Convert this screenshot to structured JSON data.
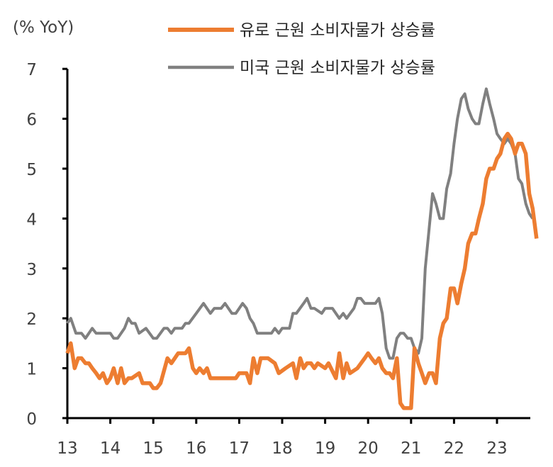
{
  "chart_data": {
    "type": "line",
    "unit_label": "(% YoY)",
    "xlabel": "",
    "ylabel": "",
    "xlim": [
      13,
      24
    ],
    "ylim": [
      0,
      7
    ],
    "x_ticks": [
      "13",
      "14",
      "15",
      "16",
      "17",
      "18",
      "19",
      "20",
      "21",
      "22",
      "23"
    ],
    "y_ticks": [
      "0",
      "1",
      "2",
      "3",
      "4",
      "5",
      "6",
      "7"
    ],
    "grid": false,
    "legend_position": "top-right",
    "series": [
      {
        "name": "유로 근원 소비자물가 상승률",
        "color": "#ED7D31",
        "points": [
          [
            13.0,
            1.3
          ],
          [
            13.08,
            1.5
          ],
          [
            13.17,
            1.0
          ],
          [
            13.25,
            1.2
          ],
          [
            13.33,
            1.2
          ],
          [
            13.42,
            1.1
          ],
          [
            13.5,
            1.1
          ],
          [
            13.58,
            1.0
          ],
          [
            13.67,
            0.9
          ],
          [
            13.75,
            0.8
          ],
          [
            13.83,
            0.9
          ],
          [
            13.92,
            0.7
          ],
          [
            14.0,
            0.8
          ],
          [
            14.08,
            1.0
          ],
          [
            14.17,
            0.7
          ],
          [
            14.25,
            1.0
          ],
          [
            14.33,
            0.7
          ],
          [
            14.42,
            0.8
          ],
          [
            14.5,
            0.8
          ],
          [
            14.67,
            0.9
          ],
          [
            14.75,
            0.7
          ],
          [
            14.92,
            0.7
          ],
          [
            15.0,
            0.6
          ],
          [
            15.08,
            0.6
          ],
          [
            15.17,
            0.7
          ],
          [
            15.33,
            1.2
          ],
          [
            15.42,
            1.1
          ],
          [
            15.58,
            1.3
          ],
          [
            15.75,
            1.3
          ],
          [
            15.83,
            1.4
          ],
          [
            15.92,
            1.0
          ],
          [
            16.0,
            0.9
          ],
          [
            16.08,
            1.0
          ],
          [
            16.17,
            0.9
          ],
          [
            16.25,
            1.0
          ],
          [
            16.33,
            0.8
          ],
          [
            16.42,
            0.8
          ],
          [
            16.58,
            0.8
          ],
          [
            16.75,
            0.8
          ],
          [
            16.92,
            0.8
          ],
          [
            17.0,
            0.9
          ],
          [
            17.17,
            0.9
          ],
          [
            17.25,
            0.7
          ],
          [
            17.33,
            1.2
          ],
          [
            17.42,
            0.9
          ],
          [
            17.5,
            1.2
          ],
          [
            17.67,
            1.2
          ],
          [
            17.83,
            1.1
          ],
          [
            17.92,
            0.9
          ],
          [
            18.08,
            1.0
          ],
          [
            18.25,
            1.1
          ],
          [
            18.33,
            0.8
          ],
          [
            18.42,
            1.2
          ],
          [
            18.5,
            1.0
          ],
          [
            18.58,
            1.1
          ],
          [
            18.67,
            1.1
          ],
          [
            18.75,
            1.0
          ],
          [
            18.83,
            1.1
          ],
          [
            19.0,
            1.0
          ],
          [
            19.08,
            1.1
          ],
          [
            19.25,
            0.8
          ],
          [
            19.33,
            1.3
          ],
          [
            19.42,
            0.8
          ],
          [
            19.5,
            1.1
          ],
          [
            19.58,
            0.9
          ],
          [
            19.75,
            1.0
          ],
          [
            19.92,
            1.2
          ],
          [
            20.0,
            1.3
          ],
          [
            20.08,
            1.2
          ],
          [
            20.17,
            1.1
          ],
          [
            20.25,
            1.2
          ],
          [
            20.33,
            1.0
          ],
          [
            20.42,
            0.9
          ],
          [
            20.5,
            0.9
          ],
          [
            20.58,
            0.8
          ],
          [
            20.67,
            1.2
          ],
          [
            20.75,
            0.3
          ],
          [
            20.83,
            0.2
          ],
          [
            20.92,
            0.2
          ],
          [
            21.0,
            0.2
          ],
          [
            21.08,
            1.4
          ],
          [
            21.17,
            1.1
          ],
          [
            21.25,
            0.9
          ],
          [
            21.33,
            0.7
          ],
          [
            21.42,
            0.9
          ],
          [
            21.5,
            0.9
          ],
          [
            21.58,
            0.7
          ],
          [
            21.67,
            1.6
          ],
          [
            21.75,
            1.9
          ],
          [
            21.83,
            2.0
          ],
          [
            21.92,
            2.6
          ],
          [
            22.0,
            2.6
          ],
          [
            22.08,
            2.3
          ],
          [
            22.17,
            2.7
          ],
          [
            22.25,
            3.0
          ],
          [
            22.33,
            3.5
          ],
          [
            22.42,
            3.7
          ],
          [
            22.5,
            3.7
          ],
          [
            22.58,
            4.0
          ],
          [
            22.67,
            4.3
          ],
          [
            22.75,
            4.8
          ],
          [
            22.83,
            5.0
          ],
          [
            22.92,
            5.0
          ],
          [
            23.0,
            5.2
          ],
          [
            23.08,
            5.3
          ],
          [
            23.17,
            5.6
          ],
          [
            23.25,
            5.7
          ],
          [
            23.33,
            5.6
          ],
          [
            23.42,
            5.3
          ],
          [
            23.5,
            5.5
          ],
          [
            23.58,
            5.5
          ],
          [
            23.67,
            5.3
          ],
          [
            23.75,
            4.5
          ],
          [
            23.83,
            4.2
          ],
          [
            23.92,
            3.6
          ]
        ]
      },
      {
        "name": "미국 근원 소비자물가 상승률",
        "color": "#808080",
        "points": [
          [
            13.0,
            1.9
          ],
          [
            13.08,
            2.0
          ],
          [
            13.2,
            1.7
          ],
          [
            13.33,
            1.7
          ],
          [
            13.42,
            1.6
          ],
          [
            13.58,
            1.8
          ],
          [
            13.67,
            1.7
          ],
          [
            14.0,
            1.7
          ],
          [
            14.08,
            1.6
          ],
          [
            14.17,
            1.6
          ],
          [
            14.33,
            1.8
          ],
          [
            14.42,
            2.0
          ],
          [
            14.5,
            1.9
          ],
          [
            14.58,
            1.9
          ],
          [
            14.67,
            1.7
          ],
          [
            14.83,
            1.8
          ],
          [
            15.0,
            1.6
          ],
          [
            15.08,
            1.6
          ],
          [
            15.25,
            1.8
          ],
          [
            15.33,
            1.8
          ],
          [
            15.42,
            1.7
          ],
          [
            15.5,
            1.8
          ],
          [
            15.67,
            1.8
          ],
          [
            15.75,
            1.9
          ],
          [
            15.83,
            1.9
          ],
          [
            16.0,
            2.1
          ],
          [
            16.17,
            2.3
          ],
          [
            16.33,
            2.1
          ],
          [
            16.42,
            2.2
          ],
          [
            16.58,
            2.2
          ],
          [
            16.67,
            2.3
          ],
          [
            16.83,
            2.1
          ],
          [
            16.92,
            2.1
          ],
          [
            17.08,
            2.3
          ],
          [
            17.17,
            2.2
          ],
          [
            17.25,
            2.0
          ],
          [
            17.33,
            1.9
          ],
          [
            17.42,
            1.7
          ],
          [
            17.75,
            1.7
          ],
          [
            17.83,
            1.8
          ],
          [
            17.92,
            1.7
          ],
          [
            18.0,
            1.8
          ],
          [
            18.17,
            1.8
          ],
          [
            18.25,
            2.1
          ],
          [
            18.33,
            2.1
          ],
          [
            18.5,
            2.3
          ],
          [
            18.58,
            2.4
          ],
          [
            18.67,
            2.2
          ],
          [
            18.75,
            2.2
          ],
          [
            18.92,
            2.1
          ],
          [
            19.0,
            2.2
          ],
          [
            19.17,
            2.2
          ],
          [
            19.33,
            2.0
          ],
          [
            19.42,
            2.1
          ],
          [
            19.5,
            2.0
          ],
          [
            19.67,
            2.2
          ],
          [
            19.75,
            2.4
          ],
          [
            19.83,
            2.4
          ],
          [
            19.92,
            2.3
          ],
          [
            20.17,
            2.3
          ],
          [
            20.25,
            2.4
          ],
          [
            20.33,
            2.1
          ],
          [
            20.42,
            1.4
          ],
          [
            20.5,
            1.2
          ],
          [
            20.58,
            1.2
          ],
          [
            20.67,
            1.6
          ],
          [
            20.75,
            1.7
          ],
          [
            20.83,
            1.7
          ],
          [
            20.92,
            1.6
          ],
          [
            21.0,
            1.6
          ],
          [
            21.08,
            1.4
          ],
          [
            21.17,
            1.3
          ],
          [
            21.25,
            1.6
          ],
          [
            21.33,
            3.0
          ],
          [
            21.42,
            3.8
          ],
          [
            21.5,
            4.5
          ],
          [
            21.58,
            4.3
          ],
          [
            21.67,
            4.0
          ],
          [
            21.75,
            4.0
          ],
          [
            21.83,
            4.6
          ],
          [
            21.92,
            4.9
          ],
          [
            22.0,
            5.5
          ],
          [
            22.08,
            6.0
          ],
          [
            22.17,
            6.4
          ],
          [
            22.25,
            6.5
          ],
          [
            22.33,
            6.2
          ],
          [
            22.42,
            6.0
          ],
          [
            22.5,
            5.9
          ],
          [
            22.58,
            5.9
          ],
          [
            22.67,
            6.3
          ],
          [
            22.75,
            6.6
          ],
          [
            22.83,
            6.3
          ],
          [
            22.92,
            6.0
          ],
          [
            23.0,
            5.7
          ],
          [
            23.08,
            5.6
          ],
          [
            23.17,
            5.5
          ],
          [
            23.25,
            5.6
          ],
          [
            23.33,
            5.5
          ],
          [
            23.42,
            5.3
          ],
          [
            23.5,
            4.8
          ],
          [
            23.58,
            4.7
          ],
          [
            23.67,
            4.3
          ],
          [
            23.75,
            4.1
          ],
          [
            23.83,
            4.0
          ]
        ]
      }
    ]
  }
}
